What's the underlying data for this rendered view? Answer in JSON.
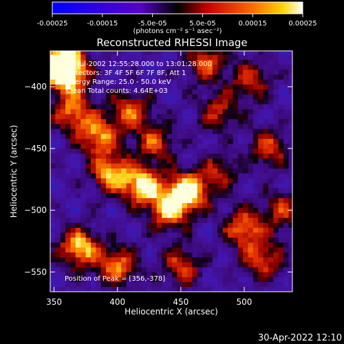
{
  "colorbar": {
    "ticks": [
      "-0.00025",
      "-0.00015",
      "-5.0e-05",
      "5.0e-05",
      "0.00015",
      "0.00025"
    ],
    "tick_values": [
      -0.00025,
      -0.00015,
      -5e-05,
      5e-05,
      0.00015,
      0.00025
    ],
    "range": [
      -0.00025,
      0.00025
    ],
    "units": "(photons cm⁻² s⁻¹ asec⁻²)"
  },
  "chart_data": {
    "type": "heatmap",
    "title": "Reconstructed RHESSI Image",
    "xlabel": "Heliocentric X (arcsec)",
    "ylabel": "Heliocentric Y (arcsec)",
    "xlim": [
      347,
      538
    ],
    "ylim": [
      -566,
      -371
    ],
    "x_ticks": [
      350,
      400,
      450,
      500
    ],
    "y_ticks": [
      -400,
      -450,
      -500,
      -550
    ],
    "annotations": [
      "20-Jul-2002 12:55:28.000 to 13:01:28.000",
      "Detectors: 3F 4F 5F 6F 7F 8F, Att 1",
      "Energy Range: 25.0 - 50.0 keV",
      "Clean     Total counts: 4.64E+03"
    ],
    "peak_label": "Position of Peak = [356,-378]",
    "peak": [
      356,
      -378
    ],
    "hotspots": [
      {
        "x": 455,
        "y": -485,
        "v": 1.0
      },
      {
        "x": 420,
        "y": -480,
        "v": 0.9
      },
      {
        "x": 395,
        "y": -470,
        "v": 0.8
      },
      {
        "x": 440,
        "y": -500,
        "v": 0.75
      },
      {
        "x": 385,
        "y": -440,
        "v": 0.75
      },
      {
        "x": 410,
        "y": -420,
        "v": 0.6
      },
      {
        "x": 360,
        "y": -390,
        "v": 0.9
      },
      {
        "x": 356,
        "y": -378,
        "v": 1.0
      },
      {
        "x": 365,
        "y": -420,
        "v": 0.7
      },
      {
        "x": 370,
        "y": -530,
        "v": 0.85
      },
      {
        "x": 400,
        "y": -545,
        "v": 0.7
      },
      {
        "x": 470,
        "y": -380,
        "v": 0.6
      },
      {
        "x": 480,
        "y": -420,
        "v": 0.5
      },
      {
        "x": 505,
        "y": -395,
        "v": 0.55
      },
      {
        "x": 520,
        "y": -450,
        "v": 0.55
      },
      {
        "x": 500,
        "y": -515,
        "v": 0.7
      },
      {
        "x": 515,
        "y": -540,
        "v": 0.6
      },
      {
        "x": 450,
        "y": -545,
        "v": 0.55
      },
      {
        "x": 480,
        "y": -470,
        "v": 0.45
      },
      {
        "x": 430,
        "y": -445,
        "v": 0.55
      },
      {
        "x": 530,
        "y": -500,
        "v": 0.5
      }
    ]
  },
  "footer": {
    "timestamp": "30-Apr-2022 12:10"
  }
}
